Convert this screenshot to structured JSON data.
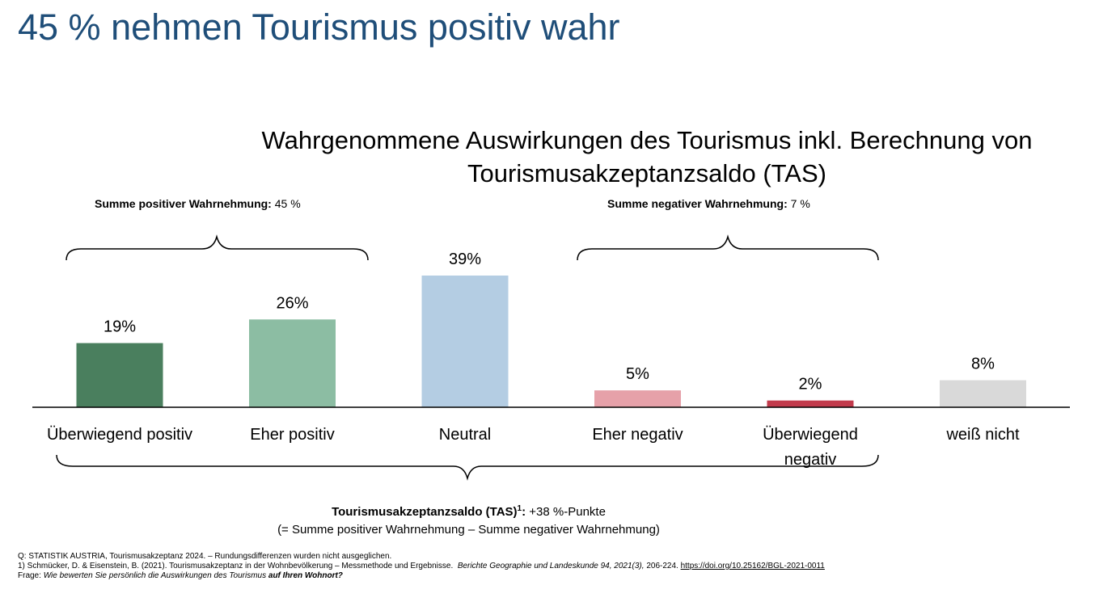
{
  "page": {
    "title": "45 % nehmen Tourismus positiv wahr"
  },
  "chart_data": {
    "type": "bar",
    "title": "Wahrgenommene Auswirkungen des Tourismus inkl. Berechnung von Tourismusakzeptanzsaldo (TAS)",
    "categories": [
      "Überwiegend positiv",
      "Eher positiv",
      "Neutral",
      "Eher negativ",
      "Überwiegend negativ",
      "weiß nicht"
    ],
    "values": [
      19,
      26,
      39,
      5,
      2,
      8
    ],
    "data_labels": [
      "19%",
      "26%",
      "39%",
      "5%",
      "2%",
      "8%"
    ],
    "colors": [
      "#4a7f5e",
      "#8cbda3",
      "#b4cde3",
      "#e6a1a9",
      "#c23b4c",
      "#d9d9d9"
    ],
    "ylim": [
      0,
      42
    ],
    "grid": false,
    "legend": "none",
    "annotations": {
      "positive_sum": {
        "label": "Summe positiver Wahrnehmung:",
        "value": "45 %"
      },
      "negative_sum": {
        "label": "Summe negativer Wahrnehmung:",
        "value": "7 %"
      },
      "tas": {
        "label": "Tourismusakzeptanzsaldo (TAS)",
        "superscript": "1",
        "colon": ":",
        "value": "+38 %-Punkte",
        "formula": "(= Summe positiver Wahrnehmung – Summe negativer Wahrnehmung)"
      }
    }
  },
  "footer": {
    "source": "Q: STATISTIK AUSTRIA, Tourismusakzeptanz 2024. – Rundungsdifferenzen wurden nicht ausgeglichen.",
    "ref_text": "1) Schmücker, D. & Eisenstein, B. (2021). Tourismusakzeptanz in der Wohnbevölkerung – Messmethode und Ergebnisse.",
    "ref_journal": "Berichte Geographie und Landeskunde 94, 2021(3),",
    "ref_pages": "206-224.",
    "ref_link": "https://doi.org/10.25162/BGL-2021-0011",
    "question_label": "Frage:",
    "question_text": "Wie bewerten Sie persönlich die Auswirkungen des Tourismus",
    "question_emph": "auf Ihren Wohnort?"
  }
}
